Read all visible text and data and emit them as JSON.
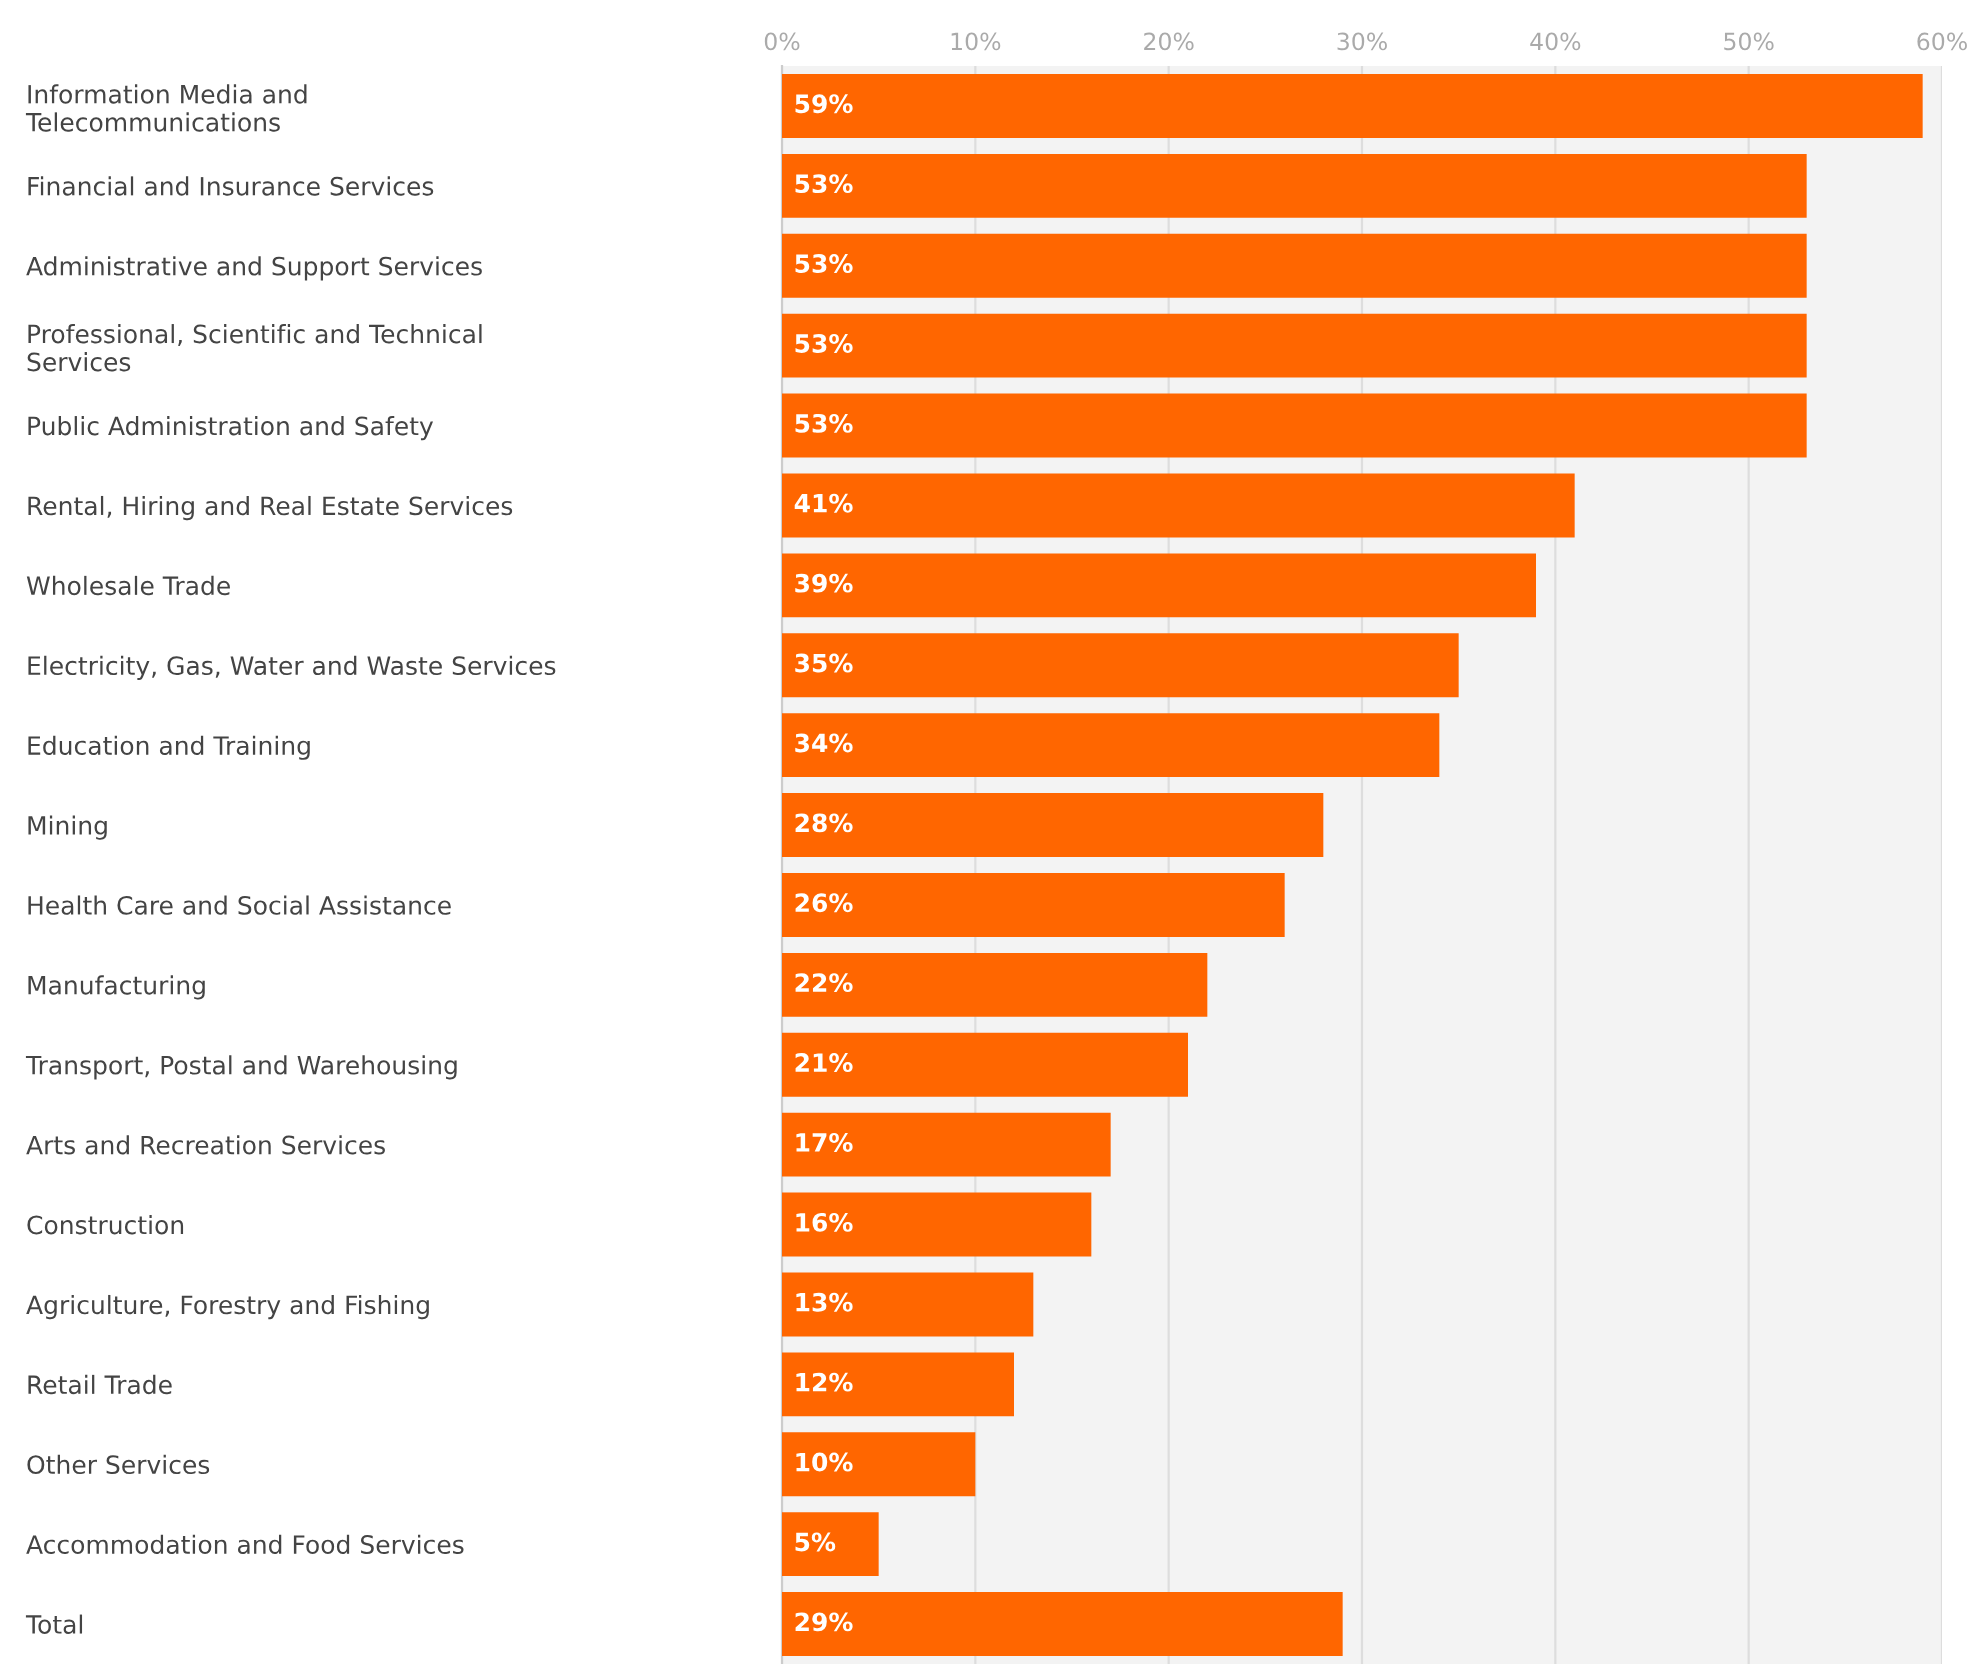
{
  "chart_data": {
    "type": "bar",
    "orientation": "horizontal",
    "categories": [
      "Information Media and\nTelecommunications",
      "Financial and Insurance Services",
      "Administrative and Support Services",
      "Professional, Scientific and Technical\nServices",
      "Public Administration and Safety",
      "Rental, Hiring and Real Estate Services",
      "Wholesale Trade",
      "Electricity, Gas, Water and Waste Services",
      "Education and Training",
      "Mining",
      "Health Care and Social Assistance",
      "Manufacturing",
      "Transport, Postal and Warehousing",
      "Arts and Recreation Services",
      "Construction",
      "Agriculture, Forestry and Fishing",
      "Retail Trade",
      "Other Services",
      "Accommodation and Food Services",
      "Total"
    ],
    "values": [
      59,
      53,
      53,
      53,
      53,
      41,
      39,
      35,
      34,
      28,
      26,
      22,
      21,
      17,
      16,
      13,
      12,
      10,
      5,
      29
    ],
    "value_labels": [
      "59%",
      "53%",
      "53%",
      "53%",
      "53%",
      "41%",
      "39%",
      "35%",
      "34%",
      "28%",
      "26%",
      "22%",
      "21%",
      "17%",
      "16%",
      "13%",
      "12%",
      "10%",
      "5%",
      "29%"
    ],
    "color": "#ff6600",
    "xlim": [
      0,
      60
    ],
    "xticks": [
      {
        "value": 0,
        "label": "0%"
      },
      {
        "value": 10,
        "label": "10%"
      },
      {
        "value": 20,
        "label": "20%"
      },
      {
        "value": 30,
        "label": "30%"
      },
      {
        "value": 40,
        "label": "40%"
      },
      {
        "value": 50,
        "label": "50%"
      },
      {
        "value": 60,
        "label": "60%"
      }
    ],
    "grid": "x"
  }
}
